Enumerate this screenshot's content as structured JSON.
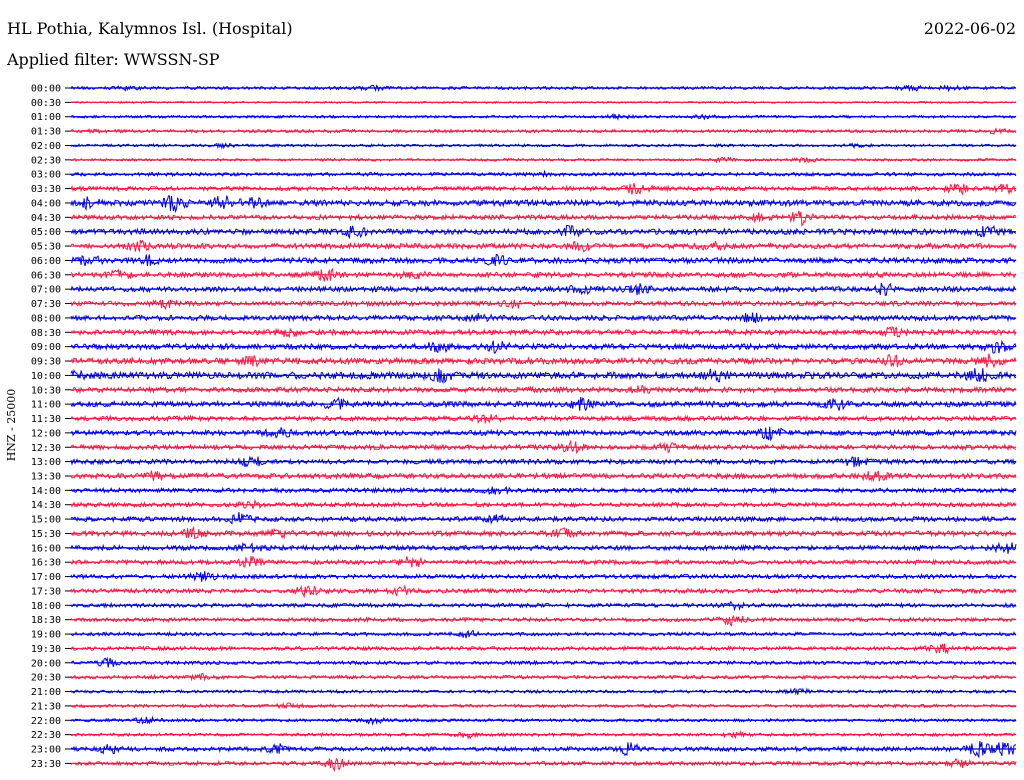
{
  "header": {
    "station": "HL Pothia, Kalymnos Isl. (Hospital)",
    "date": "2022-06-02",
    "filter": "Applied filter: WWSSN-SP"
  },
  "chart_data": {
    "type": "line",
    "title": "HL Pothia, Kalymnos Isl. (Hospital)",
    "date": "2022-06-02",
    "filter": "WWSSN-SP",
    "ylabel": "HNZ - 25000",
    "trace_colors": [
      "#0000ee",
      "#ff1a44"
    ],
    "rows": [
      {
        "time": "00:00",
        "activity": 0.35,
        "events": [
          [
            6,
            0.3
          ],
          [
            32,
            0.35
          ],
          [
            89,
            0.4
          ],
          [
            93,
            0.35
          ]
        ]
      },
      {
        "time": "00:30",
        "activity": 0.2,
        "events": []
      },
      {
        "time": "01:00",
        "activity": 0.3,
        "events": [
          [
            58,
            0.45
          ],
          [
            67,
            0.3
          ]
        ]
      },
      {
        "time": "01:30",
        "activity": 0.35,
        "events": [
          [
            3,
            0.3
          ],
          [
            98,
            0.4
          ]
        ]
      },
      {
        "time": "02:00",
        "activity": 0.3,
        "events": [
          [
            16,
            0.3
          ],
          [
            83,
            0.3
          ]
        ]
      },
      {
        "time": "02:30",
        "activity": 0.3,
        "events": [
          [
            69,
            0.35
          ],
          [
            78,
            0.45
          ]
        ]
      },
      {
        "time": "03:00",
        "activity": 0.4,
        "events": [
          [
            50,
            0.35
          ]
        ]
      },
      {
        "time": "03:30",
        "activity": 0.5,
        "events": [
          [
            60,
            1.4
          ],
          [
            94,
            1.2
          ],
          [
            99,
            0.9
          ]
        ]
      },
      {
        "time": "04:00",
        "activity": 0.7,
        "events": [
          [
            2,
            1.0
          ],
          [
            11,
            1.5
          ],
          [
            16,
            1.3
          ],
          [
            19,
            1.1
          ]
        ]
      },
      {
        "time": "04:30",
        "activity": 0.55,
        "events": [
          [
            77,
            1.6
          ],
          [
            73,
            0.8
          ]
        ]
      },
      {
        "time": "05:00",
        "activity": 0.65,
        "events": [
          [
            30,
            1.0
          ],
          [
            53,
            1.1
          ],
          [
            97,
            1.0
          ]
        ]
      },
      {
        "time": "05:30",
        "activity": 0.6,
        "events": [
          [
            7,
            1.0
          ],
          [
            54,
            0.8
          ],
          [
            68,
            1.0
          ]
        ]
      },
      {
        "time": "06:00",
        "activity": 0.65,
        "events": [
          [
            2,
            0.9
          ],
          [
            8,
            0.9
          ],
          [
            45,
            0.8
          ]
        ]
      },
      {
        "time": "06:30",
        "activity": 0.6,
        "events": [
          [
            5,
            0.9
          ],
          [
            27,
            1.1
          ],
          [
            36,
            0.9
          ]
        ]
      },
      {
        "time": "07:00",
        "activity": 0.6,
        "events": [
          [
            54,
            0.9
          ],
          [
            60,
            1.0
          ],
          [
            86,
            1.0
          ]
        ]
      },
      {
        "time": "07:30",
        "activity": 0.55,
        "events": [
          [
            10,
            0.7
          ],
          [
            47,
            0.8
          ]
        ]
      },
      {
        "time": "08:00",
        "activity": 0.6,
        "events": [
          [
            43,
            0.9
          ],
          [
            72,
            0.8
          ]
        ]
      },
      {
        "time": "08:30",
        "activity": 0.6,
        "events": [
          [
            23,
            0.9
          ],
          [
            87,
            0.8
          ]
        ]
      },
      {
        "time": "09:00",
        "activity": 0.65,
        "events": [
          [
            39,
            1.2
          ],
          [
            45,
            1.2
          ],
          [
            98,
            1.0
          ]
        ]
      },
      {
        "time": "09:30",
        "activity": 0.7,
        "events": [
          [
            19,
            0.9
          ],
          [
            87,
            1.0
          ],
          [
            97,
            1.3
          ]
        ]
      },
      {
        "time": "10:00",
        "activity": 0.8,
        "events": [
          [
            0,
            1.2
          ],
          [
            39,
            1.1
          ],
          [
            68,
            1.0
          ],
          [
            96,
            1.2
          ]
        ]
      },
      {
        "time": "10:30",
        "activity": 0.6,
        "events": [
          [
            60,
            0.7
          ]
        ]
      },
      {
        "time": "11:00",
        "activity": 0.65,
        "events": [
          [
            28,
            0.9
          ],
          [
            54,
            1.1
          ],
          [
            81,
            1.0
          ]
        ]
      },
      {
        "time": "11:30",
        "activity": 0.55,
        "events": [
          [
            44,
            0.8
          ]
        ]
      },
      {
        "time": "12:00",
        "activity": 0.6,
        "events": [
          [
            22,
            1.1
          ],
          [
            74,
            1.3
          ]
        ]
      },
      {
        "time": "12:30",
        "activity": 0.55,
        "events": [
          [
            53,
            1.0
          ],
          [
            63,
            0.8
          ]
        ]
      },
      {
        "time": "13:00",
        "activity": 0.55,
        "events": [
          [
            19,
            1.1
          ],
          [
            83,
            0.9
          ]
        ]
      },
      {
        "time": "13:30",
        "activity": 0.6,
        "events": [
          [
            9,
            1.0
          ],
          [
            85,
            0.9
          ]
        ]
      },
      {
        "time": "14:00",
        "activity": 0.5,
        "events": [
          [
            45,
            0.7
          ]
        ]
      },
      {
        "time": "14:30",
        "activity": 0.5,
        "events": [
          [
            19,
            0.7
          ]
        ]
      },
      {
        "time": "15:00",
        "activity": 0.55,
        "events": [
          [
            18,
            1.2
          ],
          [
            45,
            0.8
          ]
        ]
      },
      {
        "time": "15:30",
        "activity": 0.6,
        "events": [
          [
            13,
            1.0
          ],
          [
            22,
            0.9
          ],
          [
            52,
            0.9
          ]
        ]
      },
      {
        "time": "16:00",
        "activity": 0.55,
        "events": [
          [
            19,
            0.9
          ],
          [
            99,
            1.0
          ]
        ]
      },
      {
        "time": "16:30",
        "activity": 0.5,
        "events": [
          [
            19,
            1.0
          ],
          [
            36,
            1.3
          ]
        ]
      },
      {
        "time": "17:00",
        "activity": 0.5,
        "events": [
          [
            14,
            1.0
          ]
        ]
      },
      {
        "time": "17:30",
        "activity": 0.5,
        "events": [
          [
            25,
            1.0
          ],
          [
            35,
            0.7
          ]
        ]
      },
      {
        "time": "18:00",
        "activity": 0.45,
        "events": [
          [
            70,
            0.9
          ]
        ]
      },
      {
        "time": "18:30",
        "activity": 0.45,
        "events": [
          [
            70,
            1.0
          ]
        ]
      },
      {
        "time": "19:00",
        "activity": 0.4,
        "events": [
          [
            42,
            0.6
          ]
        ]
      },
      {
        "time": "19:30",
        "activity": 0.45,
        "events": [
          [
            92,
            1.0
          ]
        ]
      },
      {
        "time": "20:00",
        "activity": 0.4,
        "events": [
          [
            4,
            0.8
          ]
        ]
      },
      {
        "time": "20:30",
        "activity": 0.4,
        "events": [
          [
            14,
            0.6
          ]
        ]
      },
      {
        "time": "21:00",
        "activity": 0.35,
        "events": [
          [
            77,
            0.5
          ]
        ]
      },
      {
        "time": "21:30",
        "activity": 0.35,
        "events": [
          [
            23,
            0.5
          ]
        ]
      },
      {
        "time": "22:00",
        "activity": 0.35,
        "events": [
          [
            8,
            0.6
          ],
          [
            32,
            0.7
          ]
        ]
      },
      {
        "time": "22:30",
        "activity": 0.35,
        "events": [
          [
            42,
            0.6
          ],
          [
            70,
            0.5
          ]
        ]
      },
      {
        "time": "23:00",
        "activity": 0.5,
        "events": [
          [
            4,
            0.8
          ],
          [
            22,
            0.9
          ],
          [
            59,
            1.2
          ],
          [
            96,
            1.5
          ],
          [
            99,
            1.8
          ]
        ]
      },
      {
        "time": "23:30",
        "activity": 0.45,
        "events": [
          [
            28,
            1.3
          ],
          [
            94,
            0.8
          ]
        ]
      }
    ]
  }
}
